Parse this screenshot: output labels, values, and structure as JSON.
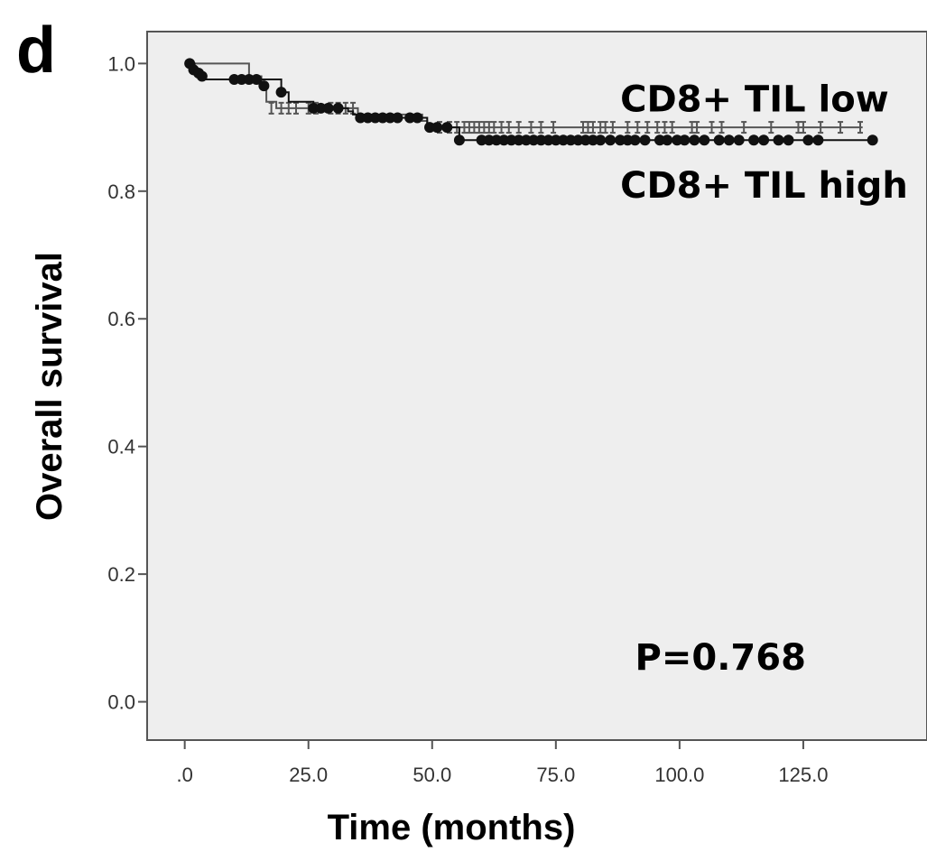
{
  "panel_label": "d",
  "chart_data": {
    "type": "line",
    "xlabel": "Time (months)",
    "ylabel": "Overall survival",
    "xlim": [
      -7.6,
      150
    ],
    "ylim": [
      -0.06,
      1.05
    ],
    "x_ticks": [
      0,
      25,
      50,
      75,
      100,
      125
    ],
    "x_tick_labels": [
      ".0",
      "25.0",
      "50.0",
      "75.0",
      "100.0",
      "125.0"
    ],
    "y_ticks": [
      0,
      0.2,
      0.4,
      0.6,
      0.8,
      1.0
    ],
    "y_tick_labels": [
      "0.0",
      "0.2",
      "0.4",
      "0.6",
      "0.8",
      "1.0"
    ],
    "grid": false,
    "background": "#eeeeee",
    "annotations": [
      {
        "text": "CD8+ TIL low",
        "x": 88,
        "y": 0.925
      },
      {
        "text": "CD8+ TIL high",
        "x": 88,
        "y": 0.79
      },
      {
        "text": "P=0.768",
        "x": 91,
        "y": 0.05
      }
    ],
    "series": [
      {
        "name": "CD8+ TIL low",
        "color": "#555555",
        "marker": "I",
        "steps": [
          [
            0,
            1.0
          ],
          [
            13,
            0.98
          ],
          [
            15.5,
            0.96
          ],
          [
            16.5,
            0.94
          ],
          [
            18.5,
            0.93
          ],
          [
            35,
            0.92
          ],
          [
            48,
            0.91
          ],
          [
            49,
            0.9
          ],
          [
            137,
            0.9
          ]
        ],
        "censored": [
          [
            17.5,
            0.93
          ],
          [
            19.5,
            0.93
          ],
          [
            21,
            0.93
          ],
          [
            22.5,
            0.93
          ],
          [
            25,
            0.93
          ],
          [
            26.5,
            0.93
          ],
          [
            29.5,
            0.93
          ],
          [
            31,
            0.93
          ],
          [
            32.5,
            0.93
          ],
          [
            34,
            0.93
          ],
          [
            51.5,
            0.9
          ],
          [
            53.5,
            0.9
          ],
          [
            55,
            0.9
          ],
          [
            56.5,
            0.9
          ],
          [
            57.5,
            0.9
          ],
          [
            58.5,
            0.9
          ],
          [
            59.5,
            0.9
          ],
          [
            60.5,
            0.9
          ],
          [
            61.5,
            0.9
          ],
          [
            62.5,
            0.9
          ],
          [
            64,
            0.9
          ],
          [
            65.5,
            0.9
          ],
          [
            67.5,
            0.9
          ],
          [
            70,
            0.9
          ],
          [
            72,
            0.9
          ],
          [
            74.5,
            0.9
          ],
          [
            80.5,
            0.9
          ],
          [
            81.5,
            0.9
          ],
          [
            82.5,
            0.9
          ],
          [
            84,
            0.9
          ],
          [
            85,
            0.9
          ],
          [
            86.5,
            0.9
          ],
          [
            89.5,
            0.9
          ],
          [
            91.5,
            0.9
          ],
          [
            93.5,
            0.9
          ],
          [
            95.5,
            0.9
          ],
          [
            97,
            0.9
          ],
          [
            98.5,
            0.9
          ],
          [
            102.5,
            0.9
          ],
          [
            103.5,
            0.9
          ],
          [
            106.5,
            0.9
          ],
          [
            108.5,
            0.9
          ],
          [
            113,
            0.9
          ],
          [
            118.5,
            0.9
          ],
          [
            124,
            0.9
          ],
          [
            125,
            0.9
          ],
          [
            128.5,
            0.9
          ],
          [
            132.5,
            0.9
          ],
          [
            136.5,
            0.9
          ]
        ]
      },
      {
        "name": "CD8+ TIL high",
        "color": "#111111",
        "marker": "dot",
        "steps": [
          [
            0,
            1.0
          ],
          [
            2,
            0.99
          ],
          [
            3,
            0.98
          ],
          [
            4,
            0.975
          ],
          [
            10,
            0.975
          ],
          [
            19.5,
            0.955
          ],
          [
            21,
            0.94
          ],
          [
            26,
            0.93
          ],
          [
            33,
            0.925
          ],
          [
            34,
            0.92
          ],
          [
            35.5,
            0.915
          ],
          [
            49,
            0.9
          ],
          [
            55.5,
            0.88
          ],
          [
            139,
            0.88
          ]
        ],
        "censored": [
          [
            1,
            1.0
          ],
          [
            1.8,
            0.99
          ],
          [
            2.8,
            0.985
          ],
          [
            3.5,
            0.98
          ],
          [
            10,
            0.975
          ],
          [
            11.5,
            0.975
          ],
          [
            13,
            0.975
          ],
          [
            14.5,
            0.975
          ],
          [
            16,
            0.965
          ],
          [
            19.5,
            0.955
          ],
          [
            26,
            0.93
          ],
          [
            27.5,
            0.93
          ],
          [
            29,
            0.93
          ],
          [
            31,
            0.93
          ],
          [
            35.5,
            0.915
          ],
          [
            37,
            0.915
          ],
          [
            38.5,
            0.915
          ],
          [
            40,
            0.915
          ],
          [
            41.5,
            0.915
          ],
          [
            43,
            0.915
          ],
          [
            45.5,
            0.915
          ],
          [
            47,
            0.915
          ],
          [
            49.5,
            0.9
          ],
          [
            51,
            0.9
          ],
          [
            53,
            0.9
          ],
          [
            55.5,
            0.88
          ],
          [
            60,
            0.88
          ],
          [
            61.5,
            0.88
          ],
          [
            63,
            0.88
          ],
          [
            64.5,
            0.88
          ],
          [
            66,
            0.88
          ],
          [
            67.5,
            0.88
          ],
          [
            69,
            0.88
          ],
          [
            70.5,
            0.88
          ],
          [
            72,
            0.88
          ],
          [
            73.5,
            0.88
          ],
          [
            75,
            0.88
          ],
          [
            76.5,
            0.88
          ],
          [
            78,
            0.88
          ],
          [
            79.5,
            0.88
          ],
          [
            81,
            0.88
          ],
          [
            82.5,
            0.88
          ],
          [
            84,
            0.88
          ],
          [
            86,
            0.88
          ],
          [
            88,
            0.88
          ],
          [
            89.5,
            0.88
          ],
          [
            91,
            0.88
          ],
          [
            93,
            0.88
          ],
          [
            96,
            0.88
          ],
          [
            97.5,
            0.88
          ],
          [
            99.5,
            0.88
          ],
          [
            101,
            0.88
          ],
          [
            103,
            0.88
          ],
          [
            105,
            0.88
          ],
          [
            108,
            0.88
          ],
          [
            110,
            0.88
          ],
          [
            112,
            0.88
          ],
          [
            115,
            0.88
          ],
          [
            117,
            0.88
          ],
          [
            120,
            0.88
          ],
          [
            122,
            0.88
          ],
          [
            126,
            0.88
          ],
          [
            128,
            0.88
          ],
          [
            139,
            0.88
          ]
        ]
      }
    ]
  }
}
